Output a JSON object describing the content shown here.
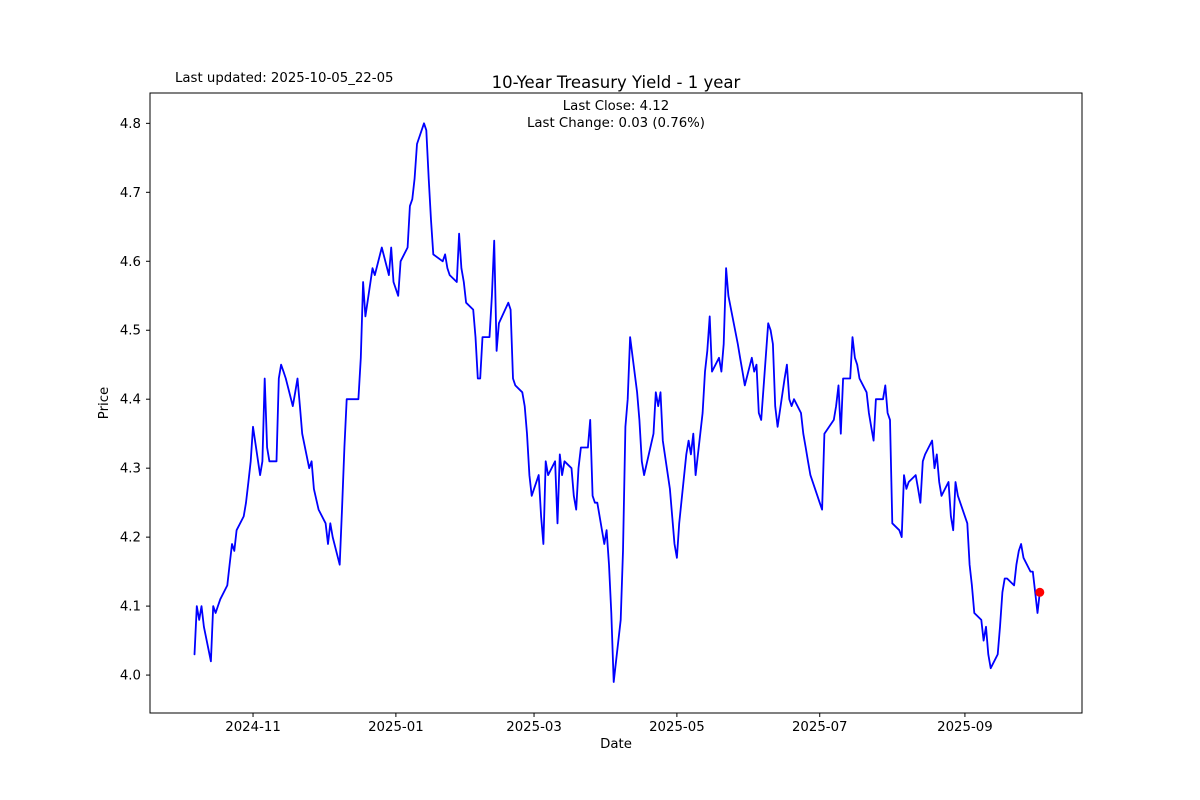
{
  "annotations": {
    "last_updated": "Last updated: 2025-10-05_22-05",
    "last_close": "Last Close: 4.12",
    "last_change": "Last Change: 0.03 (0.76%)"
  },
  "chart_data": {
    "type": "line",
    "title": "10-Year Treasury Yield - 1 year",
    "xlabel": "Date",
    "ylabel": "Price",
    "last_close": 4.12,
    "last_change": 0.03,
    "last_change_pct": "0.76%",
    "line_color": "#0000ff",
    "marker_color": "#ff0000",
    "background_color": "#ffffff",
    "grid": false,
    "legend": false,
    "xlim": [
      "2024-09-18",
      "2025-10-21"
    ],
    "ylim": [
      3.945,
      4.844
    ],
    "x_ticks": [
      {
        "label": "2024-11",
        "date": "2024-11-01"
      },
      {
        "label": "2025-01",
        "date": "2025-01-01"
      },
      {
        "label": "2025-03",
        "date": "2025-03-01"
      },
      {
        "label": "2025-05",
        "date": "2025-05-01"
      },
      {
        "label": "2025-07",
        "date": "2025-07-01"
      },
      {
        "label": "2025-09",
        "date": "2025-09-01"
      }
    ],
    "y_ticks": [
      {
        "label": "4.0",
        "value": 4.0
      },
      {
        "label": "4.1",
        "value": 4.1
      },
      {
        "label": "4.2",
        "value": 4.2
      },
      {
        "label": "4.3",
        "value": 4.3
      },
      {
        "label": "4.4",
        "value": 4.4
      },
      {
        "label": "4.5",
        "value": 4.5
      },
      {
        "label": "4.6",
        "value": 4.6
      },
      {
        "label": "4.7",
        "value": 4.7
      },
      {
        "label": "4.8",
        "value": 4.8
      }
    ],
    "series": [
      {
        "name": "10-Year Treasury Yield",
        "points": [
          [
            "2024-10-07",
            4.03
          ],
          [
            "2024-10-08",
            4.1
          ],
          [
            "2024-10-09",
            4.08
          ],
          [
            "2024-10-10",
            4.1
          ],
          [
            "2024-10-11",
            4.07
          ],
          [
            "2024-10-14",
            4.02
          ],
          [
            "2024-10-15",
            4.1
          ],
          [
            "2024-10-16",
            4.09
          ],
          [
            "2024-10-17",
            4.1
          ],
          [
            "2024-10-18",
            4.11
          ],
          [
            "2024-10-21",
            4.13
          ],
          [
            "2024-10-22",
            4.16
          ],
          [
            "2024-10-23",
            4.19
          ],
          [
            "2024-10-24",
            4.18
          ],
          [
            "2024-10-25",
            4.21
          ],
          [
            "2024-10-28",
            4.23
          ],
          [
            "2024-10-29",
            4.25
          ],
          [
            "2024-10-30",
            4.28
          ],
          [
            "2024-10-31",
            4.31
          ],
          [
            "2024-11-01",
            4.36
          ],
          [
            "2024-11-04",
            4.29
          ],
          [
            "2024-11-05",
            4.31
          ],
          [
            "2024-11-06",
            4.43
          ],
          [
            "2024-11-07",
            4.33
          ],
          [
            "2024-11-08",
            4.31
          ],
          [
            "2024-11-11",
            4.31
          ],
          [
            "2024-11-12",
            4.43
          ],
          [
            "2024-11-13",
            4.45
          ],
          [
            "2024-11-14",
            4.44
          ],
          [
            "2024-11-15",
            4.43
          ],
          [
            "2024-11-18",
            4.39
          ],
          [
            "2024-11-19",
            4.41
          ],
          [
            "2024-11-20",
            4.43
          ],
          [
            "2024-11-21",
            4.39
          ],
          [
            "2024-11-22",
            4.35
          ],
          [
            "2024-11-25",
            4.3
          ],
          [
            "2024-11-26",
            4.31
          ],
          [
            "2024-11-27",
            4.27
          ],
          [
            "2024-11-29",
            4.24
          ],
          [
            "2024-12-02",
            4.22
          ],
          [
            "2024-12-03",
            4.19
          ],
          [
            "2024-12-04",
            4.22
          ],
          [
            "2024-12-05",
            4.2
          ],
          [
            "2024-12-08",
            4.16
          ],
          [
            "2024-12-09",
            4.24
          ],
          [
            "2024-12-10",
            4.33
          ],
          [
            "2024-12-11",
            4.4
          ],
          [
            "2024-12-12",
            4.4
          ],
          [
            "2024-12-15",
            4.4
          ],
          [
            "2024-12-16",
            4.4
          ],
          [
            "2024-12-17",
            4.46
          ],
          [
            "2024-12-18",
            4.57
          ],
          [
            "2024-12-19",
            4.52
          ],
          [
            "2024-12-22",
            4.59
          ],
          [
            "2024-12-23",
            4.58
          ],
          [
            "2024-12-26",
            4.62
          ],
          [
            "2024-12-29",
            4.58
          ],
          [
            "2024-12-30",
            4.62
          ],
          [
            "2024-12-31",
            4.57
          ],
          [
            "2025-01-02",
            4.55
          ],
          [
            "2025-01-03",
            4.6
          ],
          [
            "2025-01-06",
            4.62
          ],
          [
            "2025-01-07",
            4.68
          ],
          [
            "2025-01-08",
            4.69
          ],
          [
            "2025-01-09",
            4.72
          ],
          [
            "2025-01-10",
            4.77
          ],
          [
            "2025-01-13",
            4.8
          ],
          [
            "2025-01-14",
            4.79
          ],
          [
            "2025-01-15",
            4.72
          ],
          [
            "2025-01-16",
            4.66
          ],
          [
            "2025-01-17",
            4.61
          ],
          [
            "2025-01-21",
            4.6
          ],
          [
            "2025-01-22",
            4.61
          ],
          [
            "2025-01-23",
            4.59
          ],
          [
            "2025-01-24",
            4.58
          ],
          [
            "2025-01-27",
            4.57
          ],
          [
            "2025-01-28",
            4.64
          ],
          [
            "2025-01-29",
            4.59
          ],
          [
            "2025-01-30",
            4.57
          ],
          [
            "2025-01-31",
            4.54
          ],
          [
            "2025-02-03",
            4.53
          ],
          [
            "2025-02-04",
            4.49
          ],
          [
            "2025-02-05",
            4.43
          ],
          [
            "2025-02-06",
            4.43
          ],
          [
            "2025-02-07",
            4.49
          ],
          [
            "2025-02-10",
            4.49
          ],
          [
            "2025-02-11",
            4.55
          ],
          [
            "2025-02-12",
            4.63
          ],
          [
            "2025-02-13",
            4.47
          ],
          [
            "2025-02-14",
            4.51
          ],
          [
            "2025-02-18",
            4.54
          ],
          [
            "2025-02-19",
            4.53
          ],
          [
            "2025-02-20",
            4.43
          ],
          [
            "2025-02-21",
            4.42
          ],
          [
            "2025-02-24",
            4.41
          ],
          [
            "2025-02-25",
            4.39
          ],
          [
            "2025-02-26",
            4.35
          ],
          [
            "2025-02-27",
            4.29
          ],
          [
            "2025-02-28",
            4.26
          ],
          [
            "2025-03-03",
            4.29
          ],
          [
            "2025-03-04",
            4.23
          ],
          [
            "2025-03-05",
            4.19
          ],
          [
            "2025-03-06",
            4.31
          ],
          [
            "2025-03-07",
            4.29
          ],
          [
            "2025-03-10",
            4.31
          ],
          [
            "2025-03-11",
            4.22
          ],
          [
            "2025-03-12",
            4.32
          ],
          [
            "2025-03-13",
            4.29
          ],
          [
            "2025-03-14",
            4.31
          ],
          [
            "2025-03-17",
            4.3
          ],
          [
            "2025-03-18",
            4.26
          ],
          [
            "2025-03-19",
            4.24
          ],
          [
            "2025-03-20",
            4.3
          ],
          [
            "2025-03-21",
            4.33
          ],
          [
            "2025-03-24",
            4.33
          ],
          [
            "2025-03-25",
            4.37
          ],
          [
            "2025-03-26",
            4.26
          ],
          [
            "2025-03-27",
            4.25
          ],
          [
            "2025-03-28",
            4.25
          ],
          [
            "2025-03-31",
            4.19
          ],
          [
            "2025-04-01",
            4.21
          ],
          [
            "2025-04-02",
            4.16
          ],
          [
            "2025-04-03",
            4.09
          ],
          [
            "2025-04-04",
            3.99
          ],
          [
            "2025-04-07",
            4.08
          ],
          [
            "2025-04-08",
            4.18
          ],
          [
            "2025-04-09",
            4.36
          ],
          [
            "2025-04-10",
            4.4
          ],
          [
            "2025-04-11",
            4.49
          ],
          [
            "2025-04-14",
            4.41
          ],
          [
            "2025-04-15",
            4.37
          ],
          [
            "2025-04-16",
            4.31
          ],
          [
            "2025-04-17",
            4.29
          ],
          [
            "2025-04-21",
            4.35
          ],
          [
            "2025-04-22",
            4.41
          ],
          [
            "2025-04-23",
            4.39
          ],
          [
            "2025-04-24",
            4.41
          ],
          [
            "2025-04-25",
            4.34
          ],
          [
            "2025-04-28",
            4.27
          ],
          [
            "2025-04-29",
            4.23
          ],
          [
            "2025-04-30",
            4.19
          ],
          [
            "2025-05-01",
            4.17
          ],
          [
            "2025-05-02",
            4.22
          ],
          [
            "2025-05-05",
            4.32
          ],
          [
            "2025-05-06",
            4.34
          ],
          [
            "2025-05-07",
            4.32
          ],
          [
            "2025-05-08",
            4.35
          ],
          [
            "2025-05-09",
            4.29
          ],
          [
            "2025-05-12",
            4.38
          ],
          [
            "2025-05-13",
            4.44
          ],
          [
            "2025-05-14",
            4.47
          ],
          [
            "2025-05-15",
            4.52
          ],
          [
            "2025-05-16",
            4.44
          ],
          [
            "2025-05-19",
            4.46
          ],
          [
            "2025-05-20",
            4.44
          ],
          [
            "2025-05-21",
            4.48
          ],
          [
            "2025-05-22",
            4.59
          ],
          [
            "2025-05-23",
            4.55
          ],
          [
            "2025-05-27",
            4.48
          ],
          [
            "2025-05-28",
            4.46
          ],
          [
            "2025-05-29",
            4.44
          ],
          [
            "2025-05-30",
            4.42
          ],
          [
            "2025-06-02",
            4.46
          ],
          [
            "2025-06-03",
            4.44
          ],
          [
            "2025-06-04",
            4.45
          ],
          [
            "2025-06-05",
            4.38
          ],
          [
            "2025-06-06",
            4.37
          ],
          [
            "2025-06-09",
            4.51
          ],
          [
            "2025-06-10",
            4.5
          ],
          [
            "2025-06-11",
            4.48
          ],
          [
            "2025-06-12",
            4.39
          ],
          [
            "2025-06-13",
            4.36
          ],
          [
            "2025-06-16",
            4.43
          ],
          [
            "2025-06-17",
            4.45
          ],
          [
            "2025-06-18",
            4.4
          ],
          [
            "2025-06-19",
            4.39
          ],
          [
            "2025-06-20",
            4.4
          ],
          [
            "2025-06-23",
            4.38
          ],
          [
            "2025-06-24",
            4.35
          ],
          [
            "2025-06-25",
            4.33
          ],
          [
            "2025-06-26",
            4.31
          ],
          [
            "2025-06-27",
            4.29
          ],
          [
            "2025-06-30",
            4.26
          ],
          [
            "2025-07-01",
            4.25
          ],
          [
            "2025-07-02",
            4.24
          ],
          [
            "2025-07-03",
            4.35
          ],
          [
            "2025-07-07",
            4.37
          ],
          [
            "2025-07-08",
            4.39
          ],
          [
            "2025-07-09",
            4.42
          ],
          [
            "2025-07-10",
            4.35
          ],
          [
            "2025-07-11",
            4.43
          ],
          [
            "2025-07-14",
            4.43
          ],
          [
            "2025-07-15",
            4.49
          ],
          [
            "2025-07-16",
            4.46
          ],
          [
            "2025-07-17",
            4.45
          ],
          [
            "2025-07-18",
            4.43
          ],
          [
            "2025-07-21",
            4.41
          ],
          [
            "2025-07-22",
            4.38
          ],
          [
            "2025-07-23",
            4.36
          ],
          [
            "2025-07-24",
            4.34
          ],
          [
            "2025-07-25",
            4.4
          ],
          [
            "2025-07-28",
            4.4
          ],
          [
            "2025-07-29",
            4.42
          ],
          [
            "2025-07-30",
            4.38
          ],
          [
            "2025-07-31",
            4.37
          ],
          [
            "2025-08-01",
            4.22
          ],
          [
            "2025-08-04",
            4.21
          ],
          [
            "2025-08-05",
            4.2
          ],
          [
            "2025-08-06",
            4.29
          ],
          [
            "2025-08-07",
            4.27
          ],
          [
            "2025-08-08",
            4.28
          ],
          [
            "2025-08-11",
            4.29
          ],
          [
            "2025-08-12",
            4.27
          ],
          [
            "2025-08-13",
            4.25
          ],
          [
            "2025-08-14",
            4.31
          ],
          [
            "2025-08-15",
            4.32
          ],
          [
            "2025-08-18",
            4.34
          ],
          [
            "2025-08-19",
            4.3
          ],
          [
            "2025-08-20",
            4.32
          ],
          [
            "2025-08-21",
            4.28
          ],
          [
            "2025-08-22",
            4.26
          ],
          [
            "2025-08-25",
            4.28
          ],
          [
            "2025-08-26",
            4.23
          ],
          [
            "2025-08-27",
            4.21
          ],
          [
            "2025-08-28",
            4.28
          ],
          [
            "2025-08-29",
            4.26
          ],
          [
            "2025-09-02",
            4.22
          ],
          [
            "2025-09-03",
            4.16
          ],
          [
            "2025-09-04",
            4.13
          ],
          [
            "2025-09-05",
            4.09
          ],
          [
            "2025-09-08",
            4.08
          ],
          [
            "2025-09-09",
            4.05
          ],
          [
            "2025-09-10",
            4.07
          ],
          [
            "2025-09-11",
            4.03
          ],
          [
            "2025-09-12",
            4.01
          ],
          [
            "2025-09-15",
            4.03
          ],
          [
            "2025-09-16",
            4.07
          ],
          [
            "2025-09-17",
            4.12
          ],
          [
            "2025-09-18",
            4.14
          ],
          [
            "2025-09-19",
            4.14
          ],
          [
            "2025-09-22",
            4.13
          ],
          [
            "2025-09-23",
            4.16
          ],
          [
            "2025-09-24",
            4.18
          ],
          [
            "2025-09-25",
            4.19
          ],
          [
            "2025-09-26",
            4.17
          ],
          [
            "2025-09-29",
            4.15
          ],
          [
            "2025-09-30",
            4.15
          ],
          [
            "2025-10-01",
            4.12
          ],
          [
            "2025-10-02",
            4.09
          ],
          [
            "2025-10-03",
            4.12
          ]
        ]
      }
    ]
  }
}
